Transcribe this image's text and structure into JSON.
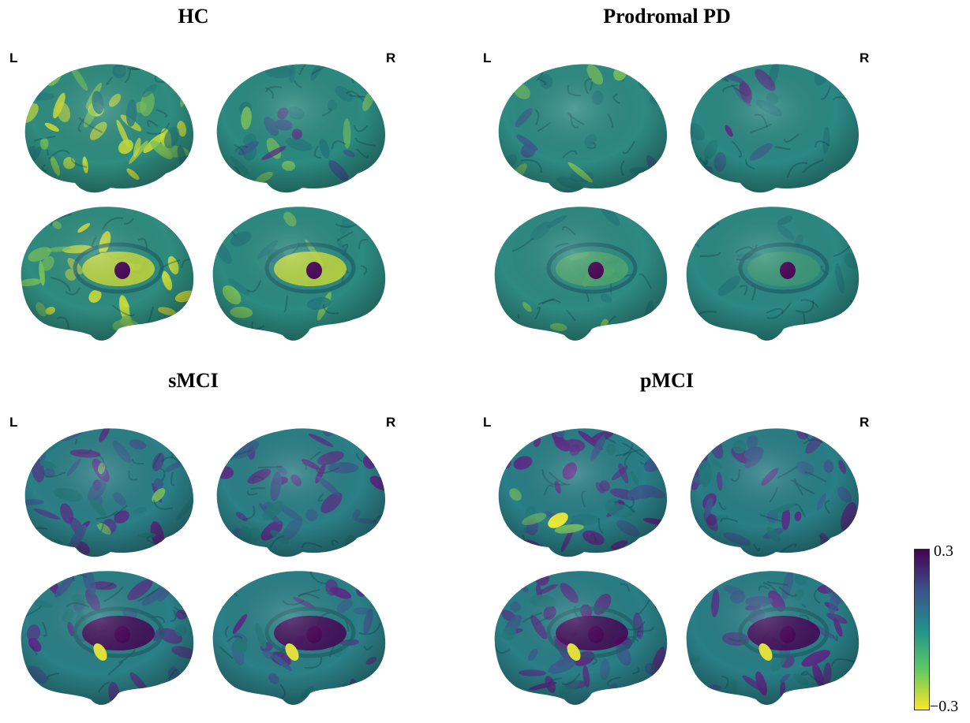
{
  "panels": [
    {
      "title": "HC",
      "left_label": "L",
      "right_label": "R"
    },
    {
      "title": "Prodromal PD",
      "left_label": "L",
      "right_label": "R"
    },
    {
      "title": "sMCI",
      "left_label": "L",
      "right_label": "R"
    },
    {
      "title": "pMCI",
      "left_label": "L",
      "right_label": "R"
    }
  ],
  "colorbar": {
    "max_label": "0.3",
    "min_label": "−0.3",
    "colors": [
      "#440154",
      "#3b528b",
      "#21918c",
      "#5ec962",
      "#fde725"
    ]
  }
}
